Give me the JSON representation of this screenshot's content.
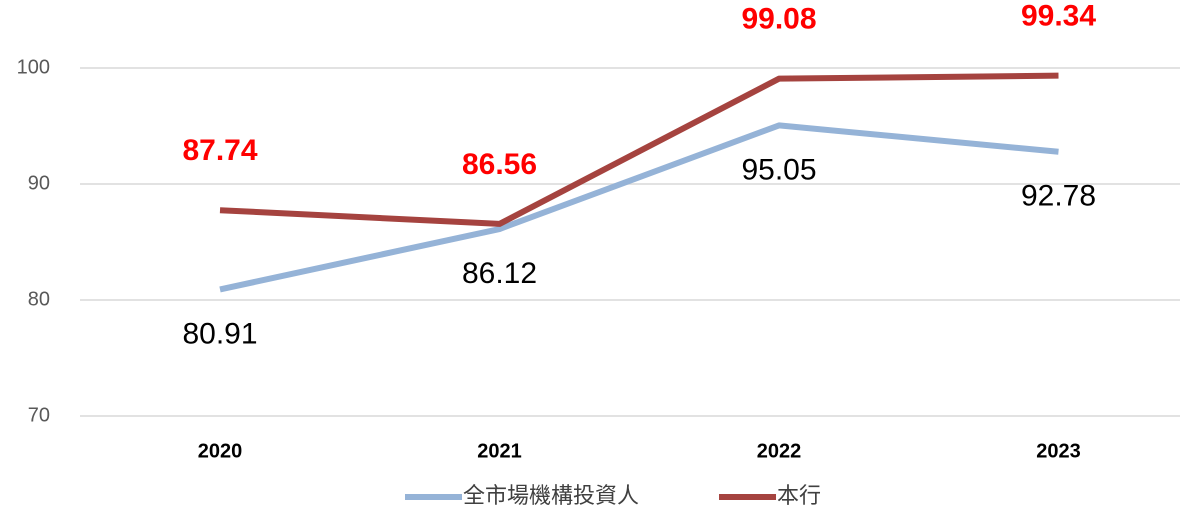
{
  "chart_data": {
    "type": "line",
    "categories": [
      "2020",
      "2021",
      "2022",
      "2023"
    ],
    "series": [
      {
        "name": "全市場機構投資人",
        "color": "#95b3d7",
        "label_color": "#000000",
        "values": [
          80.91,
          86.12,
          95.05,
          92.78
        ]
      },
      {
        "name": "本行",
        "color": "#a5433f",
        "label_color": "#ff0000",
        "values": [
          87.74,
          86.56,
          99.08,
          99.34
        ]
      }
    ],
    "ylim": [
      70,
      100
    ],
    "yticks": [
      70,
      80,
      90,
      100
    ],
    "grid": true,
    "legend": "bottom"
  }
}
